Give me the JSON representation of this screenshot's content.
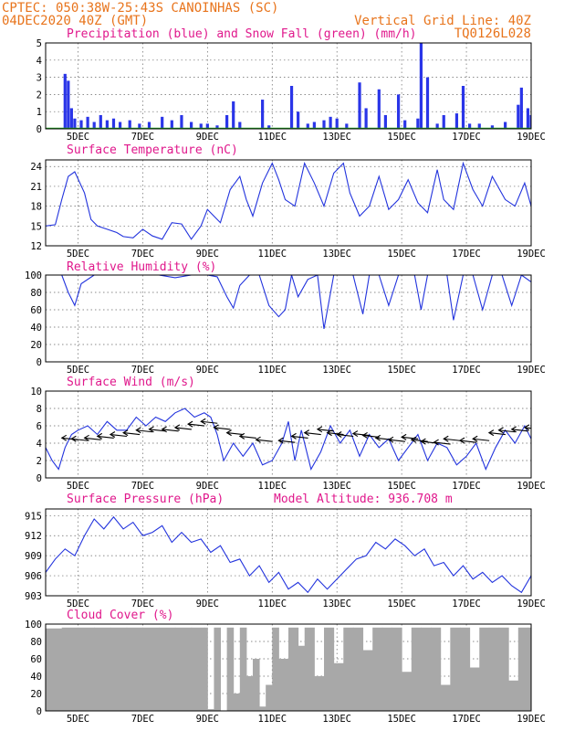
{
  "header": {
    "line1": "CPTEC:   050:38W-25:43S   CANOINHAS (SC)",
    "line2_left": "04DEC2020 40Z (GMT)",
    "line2_right": "Vertical Grid Line: 40Z",
    "line3_right": "TQ0126L028"
  },
  "colors": {
    "header": "#e8741c",
    "panel_title": "#e0188c",
    "line": "#2233dd",
    "bar": "#2a35e8",
    "snow": "#22aa22",
    "cloud": "#a8a8a8"
  },
  "x_ticks": [
    "5DEC",
    "7DEC",
    "9DEC",
    "11DEC",
    "13DEC",
    "15DEC",
    "17DEC",
    "19DEC"
  ],
  "chart_data": [
    {
      "id": "precip",
      "type": "bar",
      "title": "Precipitation (blue) and Snow Fall (green) (mm/h)",
      "ylim": [
        0,
        5
      ],
      "yticks": [
        "0",
        "1",
        "2",
        "3",
        "4",
        "5"
      ],
      "series": [
        {
          "name": "Precipitation",
          "points": [
            [
              4.6,
              3.2
            ],
            [
              4.7,
              2.8
            ],
            [
              4.8,
              1.2
            ],
            [
              4.9,
              0.6
            ],
            [
              5.1,
              0.5
            ],
            [
              5.3,
              0.7
            ],
            [
              5.5,
              0.4
            ],
            [
              5.7,
              0.8
            ],
            [
              5.9,
              0.5
            ],
            [
              6.1,
              0.6
            ],
            [
              6.3,
              0.4
            ],
            [
              6.6,
              0.5
            ],
            [
              6.9,
              0.3
            ],
            [
              7.2,
              0.4
            ],
            [
              7.6,
              0.7
            ],
            [
              7.9,
              0.5
            ],
            [
              8.2,
              0.8
            ],
            [
              8.5,
              0.4
            ],
            [
              8.8,
              0.3
            ],
            [
              9.0,
              0.3
            ],
            [
              9.3,
              0.2
            ],
            [
              9.6,
              0.8
            ],
            [
              9.8,
              1.6
            ],
            [
              10.0,
              0.4
            ],
            [
              10.7,
              1.7
            ],
            [
              10.9,
              0.2
            ],
            [
              11.6,
              2.5
            ],
            [
              11.8,
              1.0
            ],
            [
              12.1,
              0.3
            ],
            [
              12.3,
              0.4
            ],
            [
              12.6,
              0.5
            ],
            [
              12.8,
              0.7
            ],
            [
              13.0,
              0.6
            ],
            [
              13.3,
              0.3
            ],
            [
              13.7,
              2.7
            ],
            [
              13.9,
              1.2
            ],
            [
              14.3,
              2.3
            ],
            [
              14.5,
              0.8
            ],
            [
              14.9,
              2.0
            ],
            [
              15.1,
              0.5
            ],
            [
              15.5,
              0.6
            ],
            [
              15.6,
              5.0
            ],
            [
              15.8,
              3.0
            ],
            [
              16.1,
              0.3
            ],
            [
              16.3,
              0.8
            ],
            [
              16.7,
              0.9
            ],
            [
              16.9,
              2.5
            ],
            [
              17.1,
              0.3
            ],
            [
              17.4,
              0.3
            ],
            [
              17.8,
              0.2
            ],
            [
              18.2,
              0.4
            ],
            [
              18.6,
              1.4
            ],
            [
              18.7,
              2.4
            ],
            [
              18.9,
              1.2
            ],
            [
              19.0,
              0.8
            ]
          ]
        },
        {
          "name": "Snow Fall",
          "points": []
        }
      ]
    },
    {
      "id": "temp",
      "type": "line",
      "title": "Surface Temperature (nC)",
      "ylim": [
        12,
        25
      ],
      "yticks": [
        "12",
        "15",
        "18",
        "21",
        "24"
      ],
      "x": [
        4.0,
        4.3,
        4.5,
        4.7,
        4.9,
        5.2,
        5.4,
        5.6,
        5.9,
        6.2,
        6.4,
        6.7,
        7.0,
        7.3,
        7.6,
        7.9,
        8.2,
        8.5,
        8.8,
        9.0,
        9.2,
        9.4,
        9.7,
        10.0,
        10.2,
        10.4,
        10.7,
        11.0,
        11.2,
        11.4,
        11.7,
        12.0,
        12.3,
        12.6,
        12.9,
        13.2,
        13.4,
        13.7,
        14.0,
        14.3,
        14.6,
        14.9,
        15.2,
        15.5,
        15.8,
        16.1,
        16.3,
        16.6,
        16.9,
        17.2,
        17.5,
        17.8,
        18.2,
        18.5,
        18.8,
        19.0
      ],
      "y": [
        15.0,
        15.2,
        19.0,
        22.5,
        23.2,
        20.0,
        16.0,
        15.0,
        14.5,
        14.0,
        13.4,
        13.2,
        14.5,
        13.5,
        13.0,
        15.5,
        15.3,
        13.0,
        15.0,
        17.5,
        16.5,
        15.5,
        20.5,
        22.5,
        19.0,
        16.5,
        21.5,
        24.5,
        22.0,
        19.0,
        18.0,
        24.5,
        21.5,
        18.0,
        23.0,
        24.5,
        20.0,
        16.5,
        18.0,
        22.5,
        17.5,
        19.0,
        22.0,
        18.5,
        17.0,
        23.5,
        19.0,
        17.5,
        24.5,
        20.5,
        18.0,
        22.5,
        19.0,
        18.0,
        21.5,
        18.0
      ]
    },
    {
      "id": "rh",
      "type": "line",
      "title": "Relative Humidity (%)",
      "ylim": [
        0,
        100
      ],
      "yticks": [
        "0",
        "20",
        "40",
        "60",
        "80",
        "100"
      ],
      "x": [
        4.0,
        4.5,
        4.7,
        4.9,
        5.1,
        5.5,
        6.0,
        6.5,
        7.0,
        7.5,
        8.0,
        8.5,
        9.0,
        9.3,
        9.6,
        9.8,
        10.0,
        10.3,
        10.6,
        10.9,
        11.2,
        11.4,
        11.6,
        11.8,
        12.1,
        12.4,
        12.6,
        12.9,
        13.2,
        13.5,
        13.8,
        14.0,
        14.3,
        14.6,
        14.9,
        15.2,
        15.4,
        15.6,
        15.8,
        16.1,
        16.4,
        16.6,
        16.9,
        17.2,
        17.5,
        17.8,
        18.1,
        18.4,
        18.7,
        19.0
      ],
      "y": [
        100,
        100,
        80,
        65,
        90,
        100,
        100,
        100,
        100,
        100,
        97,
        100,
        100,
        98,
        75,
        62,
        88,
        100,
        100,
        65,
        52,
        60,
        100,
        75,
        95,
        100,
        38,
        100,
        100,
        100,
        55,
        100,
        100,
        65,
        100,
        100,
        100,
        60,
        100,
        100,
        100,
        48,
        100,
        100,
        60,
        100,
        100,
        65,
        100,
        92
      ]
    },
    {
      "id": "wind",
      "type": "line",
      "title": "Surface Wind (m/s)",
      "ylim": [
        0,
        10
      ],
      "yticks": [
        "0",
        "2",
        "4",
        "6",
        "8",
        "10"
      ],
      "x": [
        4.0,
        4.2,
        4.4,
        4.6,
        4.8,
        5.0,
        5.3,
        5.6,
        5.9,
        6.2,
        6.5,
        6.8,
        7.1,
        7.4,
        7.7,
        8.0,
        8.3,
        8.6,
        8.9,
        9.1,
        9.3,
        9.5,
        9.8,
        10.1,
        10.4,
        10.7,
        11.0,
        11.3,
        11.5,
        11.7,
        11.9,
        12.2,
        12.5,
        12.8,
        13.1,
        13.4,
        13.7,
        14.0,
        14.3,
        14.6,
        14.9,
        15.2,
        15.5,
        15.8,
        16.1,
        16.4,
        16.7,
        17.0,
        17.3,
        17.6,
        17.9,
        18.2,
        18.5,
        18.8,
        19.0
      ],
      "y": [
        3.5,
        2.0,
        1.0,
        3.5,
        5.0,
        5.5,
        6.0,
        5.0,
        6.5,
        5.5,
        5.5,
        7.0,
        6.0,
        7.0,
        6.5,
        7.5,
        8.0,
        7.0,
        7.5,
        7.0,
        5.0,
        2.0,
        4.0,
        2.5,
        4.0,
        1.5,
        2.0,
        4.0,
        6.5,
        2.0,
        5.5,
        1.0,
        3.0,
        6.0,
        4.0,
        5.5,
        2.5,
        5.0,
        3.5,
        4.5,
        2.0,
        3.5,
        5.0,
        2.0,
        4.0,
        3.5,
        1.5,
        2.5,
        4.0,
        1.0,
        3.5,
        5.5,
        4.0,
        6.0,
        4.5
      ],
      "arrows": [
        [
          4.5,
          4.6
        ],
        [
          4.8,
          4.5
        ],
        [
          5.2,
          4.6
        ],
        [
          5.6,
          4.8
        ],
        [
          6.0,
          5.0
        ],
        [
          6.4,
          5.2
        ],
        [
          6.8,
          5.5
        ],
        [
          7.2,
          5.6
        ],
        [
          7.6,
          5.6
        ],
        [
          8.0,
          5.8
        ],
        [
          8.4,
          6.2
        ],
        [
          8.8,
          6.5
        ],
        [
          9.2,
          5.8
        ],
        [
          9.6,
          5.2
        ],
        [
          10.0,
          4.8
        ],
        [
          10.5,
          4.4
        ],
        [
          11.2,
          4.3
        ],
        [
          11.6,
          4.8
        ],
        [
          12.0,
          5.2
        ],
        [
          12.4,
          5.6
        ],
        [
          12.7,
          5.2
        ],
        [
          13.0,
          5.0
        ],
        [
          13.5,
          5.1
        ],
        [
          13.8,
          4.9
        ],
        [
          14.2,
          4.6
        ],
        [
          14.6,
          4.4
        ],
        [
          15.0,
          4.7
        ],
        [
          15.3,
          4.4
        ],
        [
          15.6,
          4.2
        ],
        [
          16.0,
          4.1
        ],
        [
          16.3,
          4.5
        ],
        [
          16.8,
          4.3
        ],
        [
          17.2,
          4.5
        ],
        [
          17.7,
          5.2
        ],
        [
          18.0,
          5.5
        ],
        [
          18.4,
          5.6
        ],
        [
          18.8,
          5.8
        ]
      ]
    },
    {
      "id": "pressure",
      "type": "line",
      "title": "Surface Pressure (hPa)",
      "annotation": "Model Altitude: 936.708 m",
      "ylim": [
        903,
        916
      ],
      "yticks": [
        "903",
        "906",
        "909",
        "912",
        "915"
      ],
      "x": [
        4.0,
        4.3,
        4.6,
        4.9,
        5.2,
        5.5,
        5.8,
        6.1,
        6.4,
        6.7,
        7.0,
        7.3,
        7.6,
        7.9,
        8.2,
        8.5,
        8.8,
        9.1,
        9.4,
        9.7,
        10.0,
        10.3,
        10.6,
        10.9,
        11.2,
        11.5,
        11.8,
        12.1,
        12.4,
        12.7,
        13.0,
        13.3,
        13.6,
        13.9,
        14.2,
        14.5,
        14.8,
        15.1,
        15.4,
        15.7,
        16.0,
        16.3,
        16.6,
        16.9,
        17.2,
        17.5,
        17.8,
        18.1,
        18.4,
        18.7,
        19.0
      ],
      "y": [
        906.5,
        908.5,
        910.0,
        909.0,
        912.0,
        914.5,
        913.0,
        914.8,
        913.0,
        914.0,
        912.0,
        912.5,
        913.5,
        911.0,
        912.5,
        911.0,
        911.5,
        909.5,
        910.5,
        908.0,
        908.5,
        906.0,
        907.5,
        905.0,
        906.5,
        904.0,
        905.0,
        903.5,
        905.5,
        904.0,
        905.5,
        907.0,
        908.5,
        909.0,
        911.0,
        910.0,
        911.5,
        910.5,
        909.0,
        910.0,
        907.5,
        908.0,
        906.0,
        907.5,
        905.5,
        906.5,
        905.0,
        906.0,
        904.5,
        903.5,
        906.0
      ]
    },
    {
      "id": "cloud",
      "type": "area",
      "title": "Cloud Cover (%)",
      "ylim": [
        0,
        100
      ],
      "yticks": [
        "0",
        "20",
        "40",
        "60",
        "80",
        "100"
      ],
      "x": [
        4.0,
        4.5,
        5.0,
        5.5,
        6.0,
        6.5,
        7.0,
        7.5,
        8.0,
        8.5,
        8.9,
        9.0,
        9.2,
        9.4,
        9.6,
        9.8,
        10.0,
        10.2,
        10.4,
        10.6,
        10.8,
        11.0,
        11.2,
        11.5,
        11.8,
        12.0,
        12.3,
        12.6,
        12.9,
        13.2,
        13.5,
        13.8,
        14.1,
        14.4,
        14.7,
        15.0,
        15.3,
        15.6,
        15.9,
        16.2,
        16.5,
        16.8,
        17.1,
        17.4,
        17.7,
        18.0,
        18.3,
        18.6,
        18.9,
        19.0
      ],
      "y": [
        95,
        96,
        96,
        96,
        96,
        96,
        96,
        96,
        96,
        96,
        96,
        2,
        96,
        0,
        96,
        20,
        96,
        40,
        60,
        5,
        30,
        96,
        60,
        96,
        75,
        96,
        40,
        96,
        55,
        96,
        96,
        70,
        96,
        96,
        96,
        45,
        96,
        96,
        96,
        30,
        96,
        96,
        50,
        96,
        96,
        96,
        35,
        96,
        96,
        96
      ]
    }
  ]
}
